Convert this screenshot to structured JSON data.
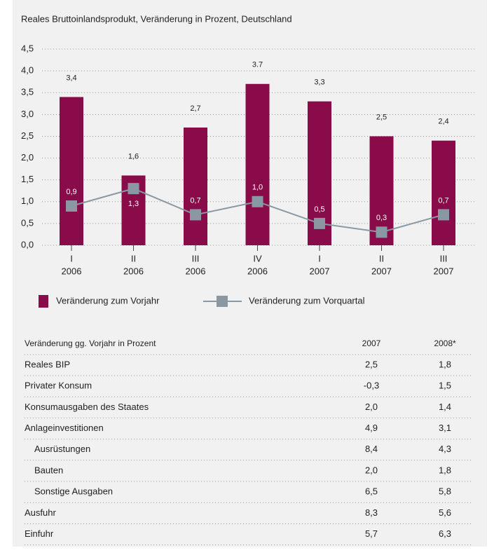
{
  "chart_data": {
    "type": "bar",
    "title": "Reales Bruttoinlandsprodukt, Veränderung in Prozent, Deutschland",
    "categories": [
      [
        "I",
        "2006"
      ],
      [
        "II",
        "2006"
      ],
      [
        "III",
        "2006"
      ],
      [
        "IV",
        "2006"
      ],
      [
        "I",
        "2007"
      ],
      [
        "II",
        "2007"
      ],
      [
        "III",
        "2007"
      ]
    ],
    "series": [
      {
        "name": "Veränderung zum Vorjahr",
        "type": "bar",
        "color": "#8a0b4a",
        "values": [
          3.4,
          1.6,
          2.7,
          3.7,
          3.3,
          2.5,
          2.4
        ],
        "value_labels": [
          "3,4",
          "1,6",
          "2,7",
          "3.7",
          "3,3",
          "2,5",
          "2,4"
        ]
      },
      {
        "name": "Veränderung zum Vorquartal",
        "type": "line",
        "color": "#8a98a3",
        "values": [
          0.9,
          1.3,
          0.7,
          1.0,
          0.5,
          0.3,
          0.7
        ],
        "value_labels": [
          "0,9",
          "1,3",
          "0,7",
          "1,0",
          "0,5",
          "0,3",
          "0,7"
        ]
      }
    ],
    "ylim": [
      0,
      4.5
    ],
    "yticks": [
      {
        "value": 0,
        "label": "0,0"
      },
      {
        "value": 0.5,
        "label": "0,5"
      },
      {
        "value": 1,
        "label": "1,0"
      },
      {
        "value": 1.5,
        "label": "1,5"
      },
      {
        "value": 2,
        "label": "2,0"
      },
      {
        "value": 2.5,
        "label": "2,5"
      },
      {
        "value": 3,
        "label": "3,0"
      },
      {
        "value": 3.5,
        "label": "3,5"
      },
      {
        "value": 4,
        "label": "4,0"
      },
      {
        "value": 4.5,
        "label": "4,5"
      }
    ],
    "grid": true
  },
  "table": {
    "header": [
      "Veränderung gg. Vorjahr in Prozent",
      "2007",
      "2008*"
    ],
    "rows": [
      [
        "Reales BIP",
        "2,5",
        "1,8"
      ],
      [
        "Privater Konsum",
        "-0,3",
        "1,5"
      ],
      [
        "Konsumausgaben des Staates",
        "2,0",
        "1,4"
      ],
      [
        "Anlageinvestitionen",
        "4,9",
        "3,1"
      ],
      [
        "Ausrüstungen",
        "8,4",
        "4,3"
      ],
      [
        "Bauten",
        "2,0",
        "1,8"
      ],
      [
        "Sonstige Ausgaben",
        "6,5",
        "5,8"
      ],
      [
        "Ausfuhr",
        "8,3",
        "5,6"
      ],
      [
        "Einfuhr",
        "5,7",
        "6,3"
      ]
    ]
  }
}
